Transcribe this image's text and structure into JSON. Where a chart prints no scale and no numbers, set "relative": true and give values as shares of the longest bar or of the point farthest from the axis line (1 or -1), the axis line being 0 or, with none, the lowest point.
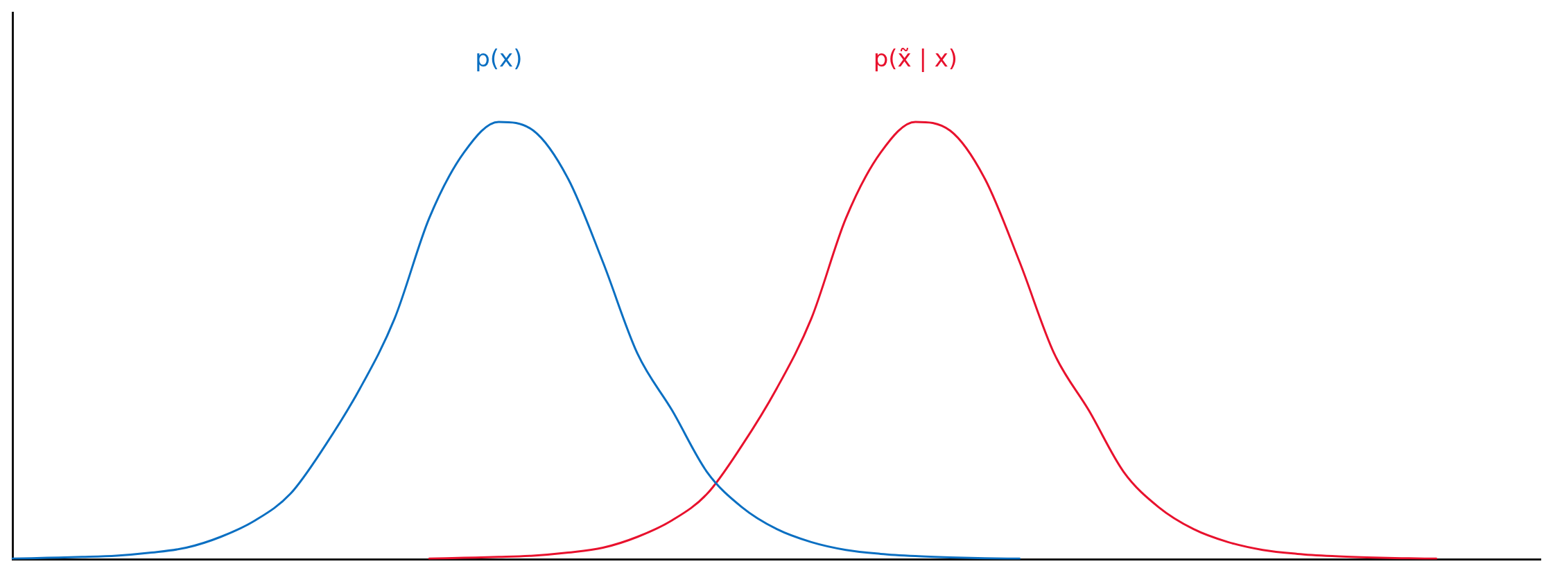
{
  "chart_data": {
    "type": "line",
    "relative": true,
    "categories": [
      null,
      null,
      null,
      null,
      null,
      null,
      null,
      null,
      null,
      null,
      null,
      null,
      null,
      null,
      null,
      null,
      null,
      null,
      null,
      null,
      null,
      null,
      null,
      null,
      null,
      null,
      null,
      null,
      null,
      null,
      null,
      null,
      null,
      null,
      null,
      null,
      null,
      null,
      null,
      null,
      null,
      null,
      null,
      null,
      null
    ],
    "series": [
      {
        "name": "p(x)",
        "color": "#0a6fc2",
        "values": [
          0.002,
          0.004,
          0.006,
          0.009,
          0.016,
          0.027,
          0.052,
          0.09,
          0.15,
          0.26,
          0.39,
          0.55,
          0.78,
          0.93,
          1,
          0.98,
          0.87,
          0.68,
          0.47,
          0.34,
          0.2,
          0.12,
          0.07,
          0.04,
          0.022,
          0.013,
          0.008,
          0.005,
          0.003,
          0.002,
          null,
          null,
          null,
          null,
          null,
          null,
          null,
          null,
          null,
          null,
          null,
          null,
          null,
          null,
          null
        ]
      },
      {
        "name": "p(x̃ | x)",
        "color": "#e8112d",
        "values": [
          null,
          null,
          null,
          null,
          null,
          null,
          null,
          null,
          null,
          null,
          null,
          null,
          0.002,
          0.004,
          0.006,
          0.009,
          0.016,
          0.027,
          0.052,
          0.09,
          0.15,
          0.26,
          0.39,
          0.55,
          0.78,
          0.93,
          1,
          0.98,
          0.87,
          0.68,
          0.47,
          0.34,
          0.2,
          0.12,
          0.07,
          0.04,
          0.022,
          0.013,
          0.008,
          0.005,
          0.003,
          0.002,
          null,
          null,
          null
        ]
      }
    ],
    "legend": false,
    "grid": false,
    "marker": "none",
    "line_style": "solid"
  }
}
